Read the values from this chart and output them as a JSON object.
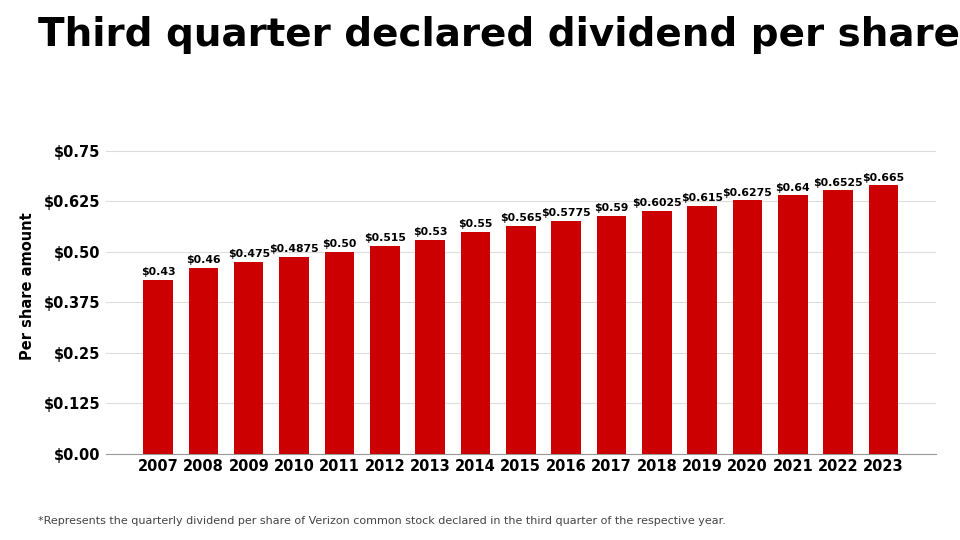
{
  "title": "Third quarter declared dividend per share*",
  "ylabel": "Per share amount",
  "footnote": "*Represents the quarterly dividend per share of Verizon common stock declared in the third quarter of the respective year.",
  "years": [
    "2007",
    "2008",
    "2009",
    "2010",
    "2011",
    "2012",
    "2013",
    "2014",
    "2015",
    "2016",
    "2017",
    "2018",
    "2019",
    "2020",
    "2021",
    "2022",
    "2023"
  ],
  "values": [
    0.43,
    0.46,
    0.475,
    0.4875,
    0.5,
    0.515,
    0.53,
    0.55,
    0.565,
    0.5775,
    0.59,
    0.6025,
    0.615,
    0.6275,
    0.64,
    0.6525,
    0.665
  ],
  "labels": [
    "$0.43",
    "$0.46",
    "$0.475",
    "$0.4875",
    "$0.50",
    "$0.515",
    "$0.53",
    "$0.55",
    "$0.565",
    "$0.5775",
    "$0.59",
    "$0.6025",
    "$0.615",
    "$0.6275",
    "$0.64",
    "$0.6525",
    "$0.665"
  ],
  "bar_color": "#CC0000",
  "background_color": "#FFFFFF",
  "title_fontsize": 28,
  "label_fontsize": 7.8,
  "axis_fontsize": 10.5,
  "ylabel_fontsize": 10.5,
  "footnote_fontsize": 8,
  "ytick_labels": [
    "$0.00",
    "$0.125",
    "$0.25",
    "$0.375",
    "$0.50",
    "$0.625",
    "$0.75"
  ],
  "ytick_values": [
    0.0,
    0.125,
    0.25,
    0.375,
    0.5,
    0.625,
    0.75
  ],
  "ylim": [
    0,
    0.83
  ],
  "grid_color": "#DDDDDD",
  "bar_width": 0.65
}
